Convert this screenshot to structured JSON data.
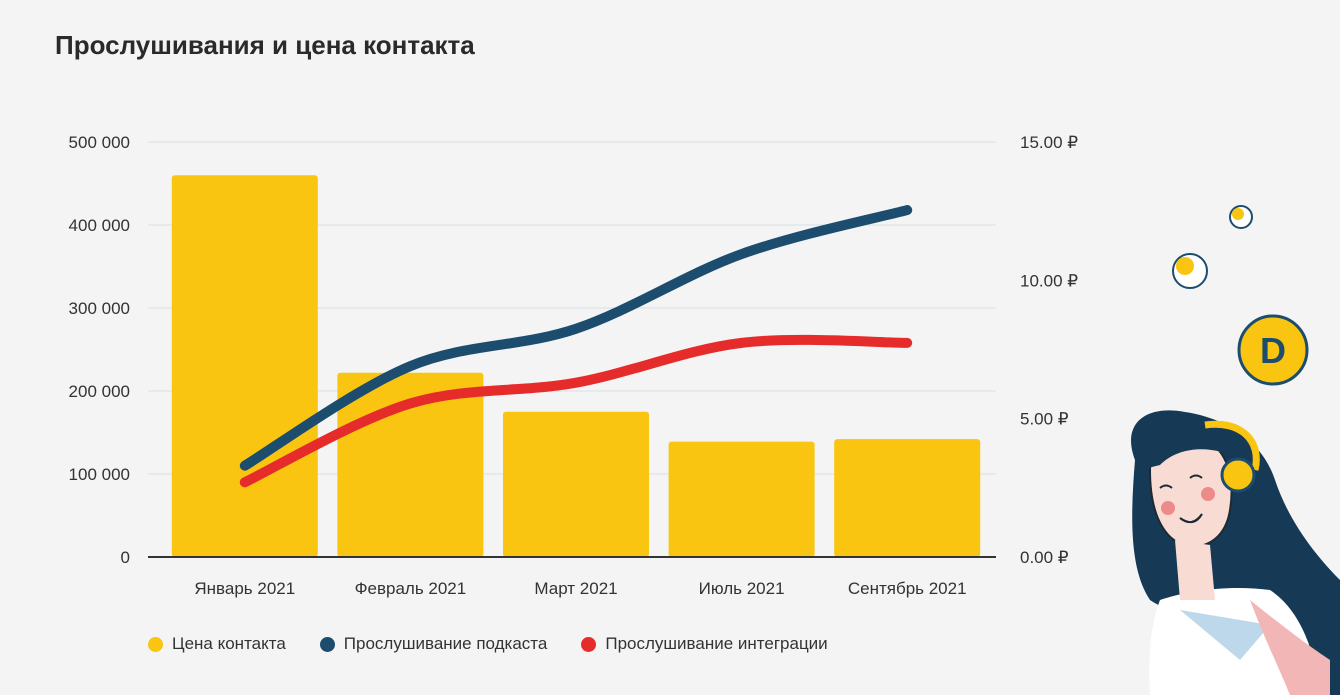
{
  "title": "Прослушивания и цена контакта",
  "colors": {
    "bar": "#f9c511",
    "podcast": "#1d4d6e",
    "integration": "#e62b2b",
    "grid": "#d9dfe6",
    "axis": "#333333"
  },
  "chart_data": {
    "type": "bar",
    "title": "Прослушивания и цена контакта",
    "categories": [
      "Январь 2021",
      "Февраль 2021",
      "Март 2021",
      "Июль 2021",
      "Сентябрь 2021"
    ],
    "y_left": {
      "ticks": [
        "0",
        "100 000",
        "200 000",
        "300 000",
        "400 000",
        "500 000"
      ],
      "lim": [
        0,
        500000
      ]
    },
    "y_right": {
      "ticks": [
        "0.00 ₽",
        "5.00 ₽",
        "10.00 ₽",
        "15.00 ₽"
      ],
      "lim": [
        0,
        15
      ]
    },
    "grid": true,
    "legend_position": "bottom-left",
    "series": [
      {
        "name": "Цена контакта",
        "type": "bar",
        "axis": "left",
        "color": "#f9c511",
        "values": [
          460000,
          222000,
          175000,
          139000,
          142000
        ]
      },
      {
        "name": "Прослушивание подкаста",
        "type": "line",
        "axis": "left",
        "color": "#1d4d6e",
        "values": [
          110000,
          230000,
          275000,
          365000,
          418000
        ]
      },
      {
        "name": "Прослушивание интеграции",
        "type": "line",
        "axis": "left",
        "color": "#e62b2b",
        "values": [
          90000,
          185000,
          210000,
          258000,
          258000
        ]
      }
    ]
  },
  "legend": [
    {
      "label": "Цена контакта",
      "color": "#f9c511"
    },
    {
      "label": "Прослушивание подкаста",
      "color": "#1d4d6e"
    },
    {
      "label": "Прослушивание интеграции",
      "color": "#e62b2b"
    }
  ],
  "illustration": {
    "description_icon": "headphones-girl-illustration",
    "badge_letter": "D"
  }
}
